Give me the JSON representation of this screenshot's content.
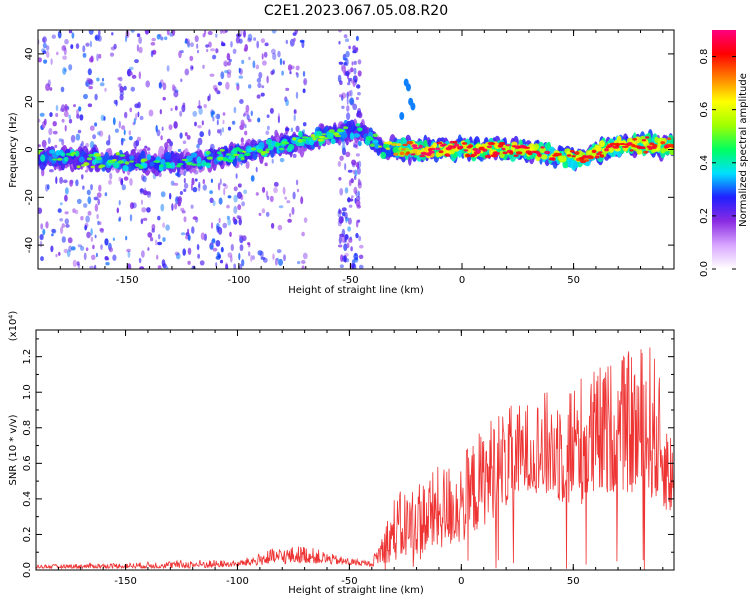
{
  "title": "C2E1.2023.067.05.08.R20",
  "chart_data": [
    {
      "type": "heatmap",
      "xlabel": "Height of straight line (km)",
      "ylabel": "Frequency (Hz)",
      "xlim": [
        -190,
        95
      ],
      "ylim": [
        -50,
        50
      ],
      "xticks": [
        -150,
        -100,
        -50,
        0,
        50
      ],
      "yticks": [
        -40,
        -20,
        0,
        20,
        40
      ],
      "colorbar": {
        "label": "Normalized spectral amplitude",
        "range": [
          0,
          0.9
        ],
        "ticks": [
          0.0,
          0.2,
          0.4,
          0.6,
          0.8
        ],
        "colormap": [
          "#ffffff",
          "#d8a6ff",
          "#8a2be2",
          "#2020ff",
          "#00e0ff",
          "#00ff60",
          "#a0ff00",
          "#ffff00",
          "#ff8000",
          "#ff0000",
          "#ff0080"
        ]
      },
      "ridge_profile": [
        {
          "x": -190,
          "freq": -3,
          "amp": 0.45
        },
        {
          "x": -150,
          "freq": -5,
          "amp": 0.45
        },
        {
          "x": -120,
          "freq": -5,
          "amp": 0.4
        },
        {
          "x": -100,
          "freq": -2,
          "amp": 0.45
        },
        {
          "x": -80,
          "freq": 2,
          "amp": 0.45
        },
        {
          "x": -60,
          "freq": 6,
          "amp": 0.5
        },
        {
          "x": -45,
          "freq": 8,
          "amp": 0.4
        },
        {
          "x": -35,
          "freq": 0,
          "amp": 0.5
        },
        {
          "x": -20,
          "freq": 0,
          "amp": 0.85
        },
        {
          "x": 0,
          "freq": 0,
          "amp": 0.8
        },
        {
          "x": 30,
          "freq": 0,
          "amp": 0.8
        },
        {
          "x": 50,
          "freq": -4,
          "amp": 0.75
        },
        {
          "x": 70,
          "freq": 2,
          "amp": 0.8
        },
        {
          "x": 95,
          "freq": 2,
          "amp": 0.75
        }
      ]
    },
    {
      "type": "line",
      "xlabel": "Height of straight line (km)",
      "ylabel": "SNR (10 * v/v)",
      "yscale_note": "(x10⁴)",
      "xlim": [
        -190,
        95
      ],
      "ylim": [
        0,
        1.35
      ],
      "xticks": [
        -150,
        -100,
        -50,
        0,
        50
      ],
      "yticks": [
        0.0,
        0.2,
        0.4,
        0.6,
        0.8,
        1.0,
        1.2
      ],
      "series_color": "#ee3333",
      "envelope": [
        {
          "x": -190,
          "low": 0.01,
          "high": 0.03
        },
        {
          "x": -150,
          "low": 0.01,
          "high": 0.04
        },
        {
          "x": -115,
          "low": 0.01,
          "high": 0.06
        },
        {
          "x": -100,
          "low": 0.02,
          "high": 0.05
        },
        {
          "x": -85,
          "low": 0.03,
          "high": 0.12
        },
        {
          "x": -70,
          "low": 0.04,
          "high": 0.14
        },
        {
          "x": -55,
          "low": 0.03,
          "high": 0.08
        },
        {
          "x": -40,
          "low": 0.02,
          "high": 0.05
        },
        {
          "x": -30,
          "low": 0.05,
          "high": 0.42
        },
        {
          "x": -15,
          "low": 0.1,
          "high": 0.55
        },
        {
          "x": 0,
          "low": 0.15,
          "high": 0.65
        },
        {
          "x": 15,
          "low": 0.3,
          "high": 0.9
        },
        {
          "x": 30,
          "low": 0.45,
          "high": 0.95
        },
        {
          "x": 50,
          "low": 0.35,
          "high": 1.1
        },
        {
          "x": 70,
          "low": 0.45,
          "high": 1.2
        },
        {
          "x": 85,
          "low": 0.4,
          "high": 1.3
        },
        {
          "x": 95,
          "low": 0.3,
          "high": 0.7
        }
      ]
    }
  ]
}
